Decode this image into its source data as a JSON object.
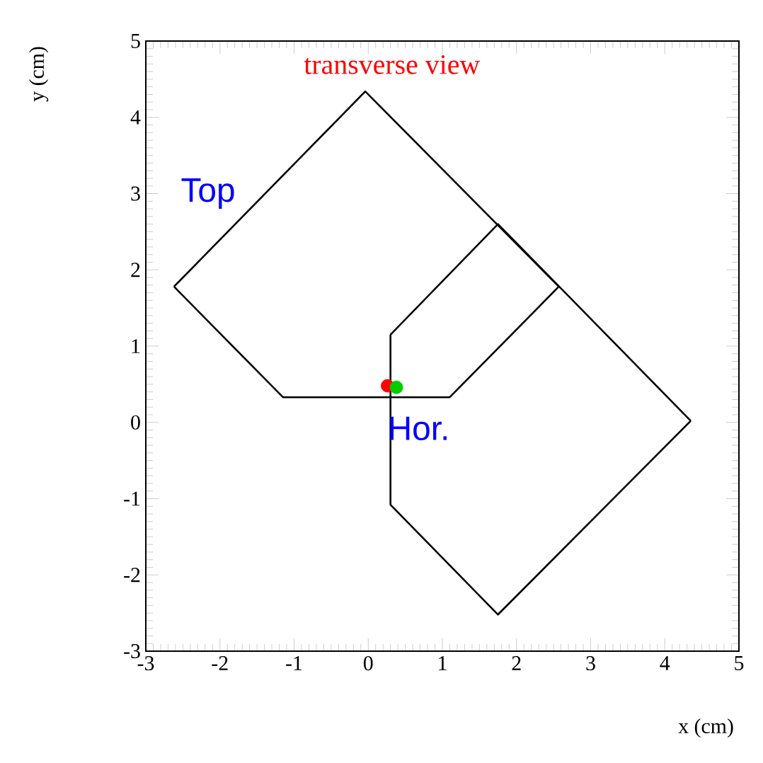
{
  "chart_data": {
    "type": "line",
    "title": "transverse view",
    "xlabel": "x   (cm)",
    "ylabel": "y   (cm)",
    "xlim": [
      -3,
      5
    ],
    "ylim": [
      -3,
      5
    ],
    "xticks": [
      -3,
      -2,
      -1,
      0,
      1,
      2,
      3,
      4,
      5
    ],
    "yticks": [
      -3,
      -2,
      -1,
      0,
      1,
      2,
      3,
      4,
      5
    ],
    "line_style": "solid",
    "series": [
      {
        "color": "#000000",
        "x": [
          -2.62,
          -1.15,
          1.1,
          2.57
        ],
        "values": [
          1.78,
          0.33,
          0.33,
          1.78
        ]
      },
      {
        "color": "#000000",
        "x": [
          -2.62,
          -0.04,
          2.57
        ],
        "values": [
          1.78,
          4.34,
          1.78
        ]
      },
      {
        "color": "#000000",
        "x": [
          0.3,
          1.75,
          4.35
        ],
        "values": [
          1.15,
          2.6,
          0.02
        ]
      },
      {
        "color": "#000000",
        "x": [
          0.3,
          0.3,
          1.75,
          4.35
        ],
        "values": [
          1.15,
          -1.08,
          -2.52,
          0.02
        ]
      },
      {
        "type": "scatter",
        "color": "#ff0000",
        "x": [
          0.26
        ],
        "values": [
          0.48
        ]
      },
      {
        "type": "scatter",
        "color": "#00cc00",
        "x": [
          0.38
        ],
        "values": [
          0.46
        ]
      }
    ],
    "annotations": [
      "Top",
      "Hor."
    ]
  }
}
